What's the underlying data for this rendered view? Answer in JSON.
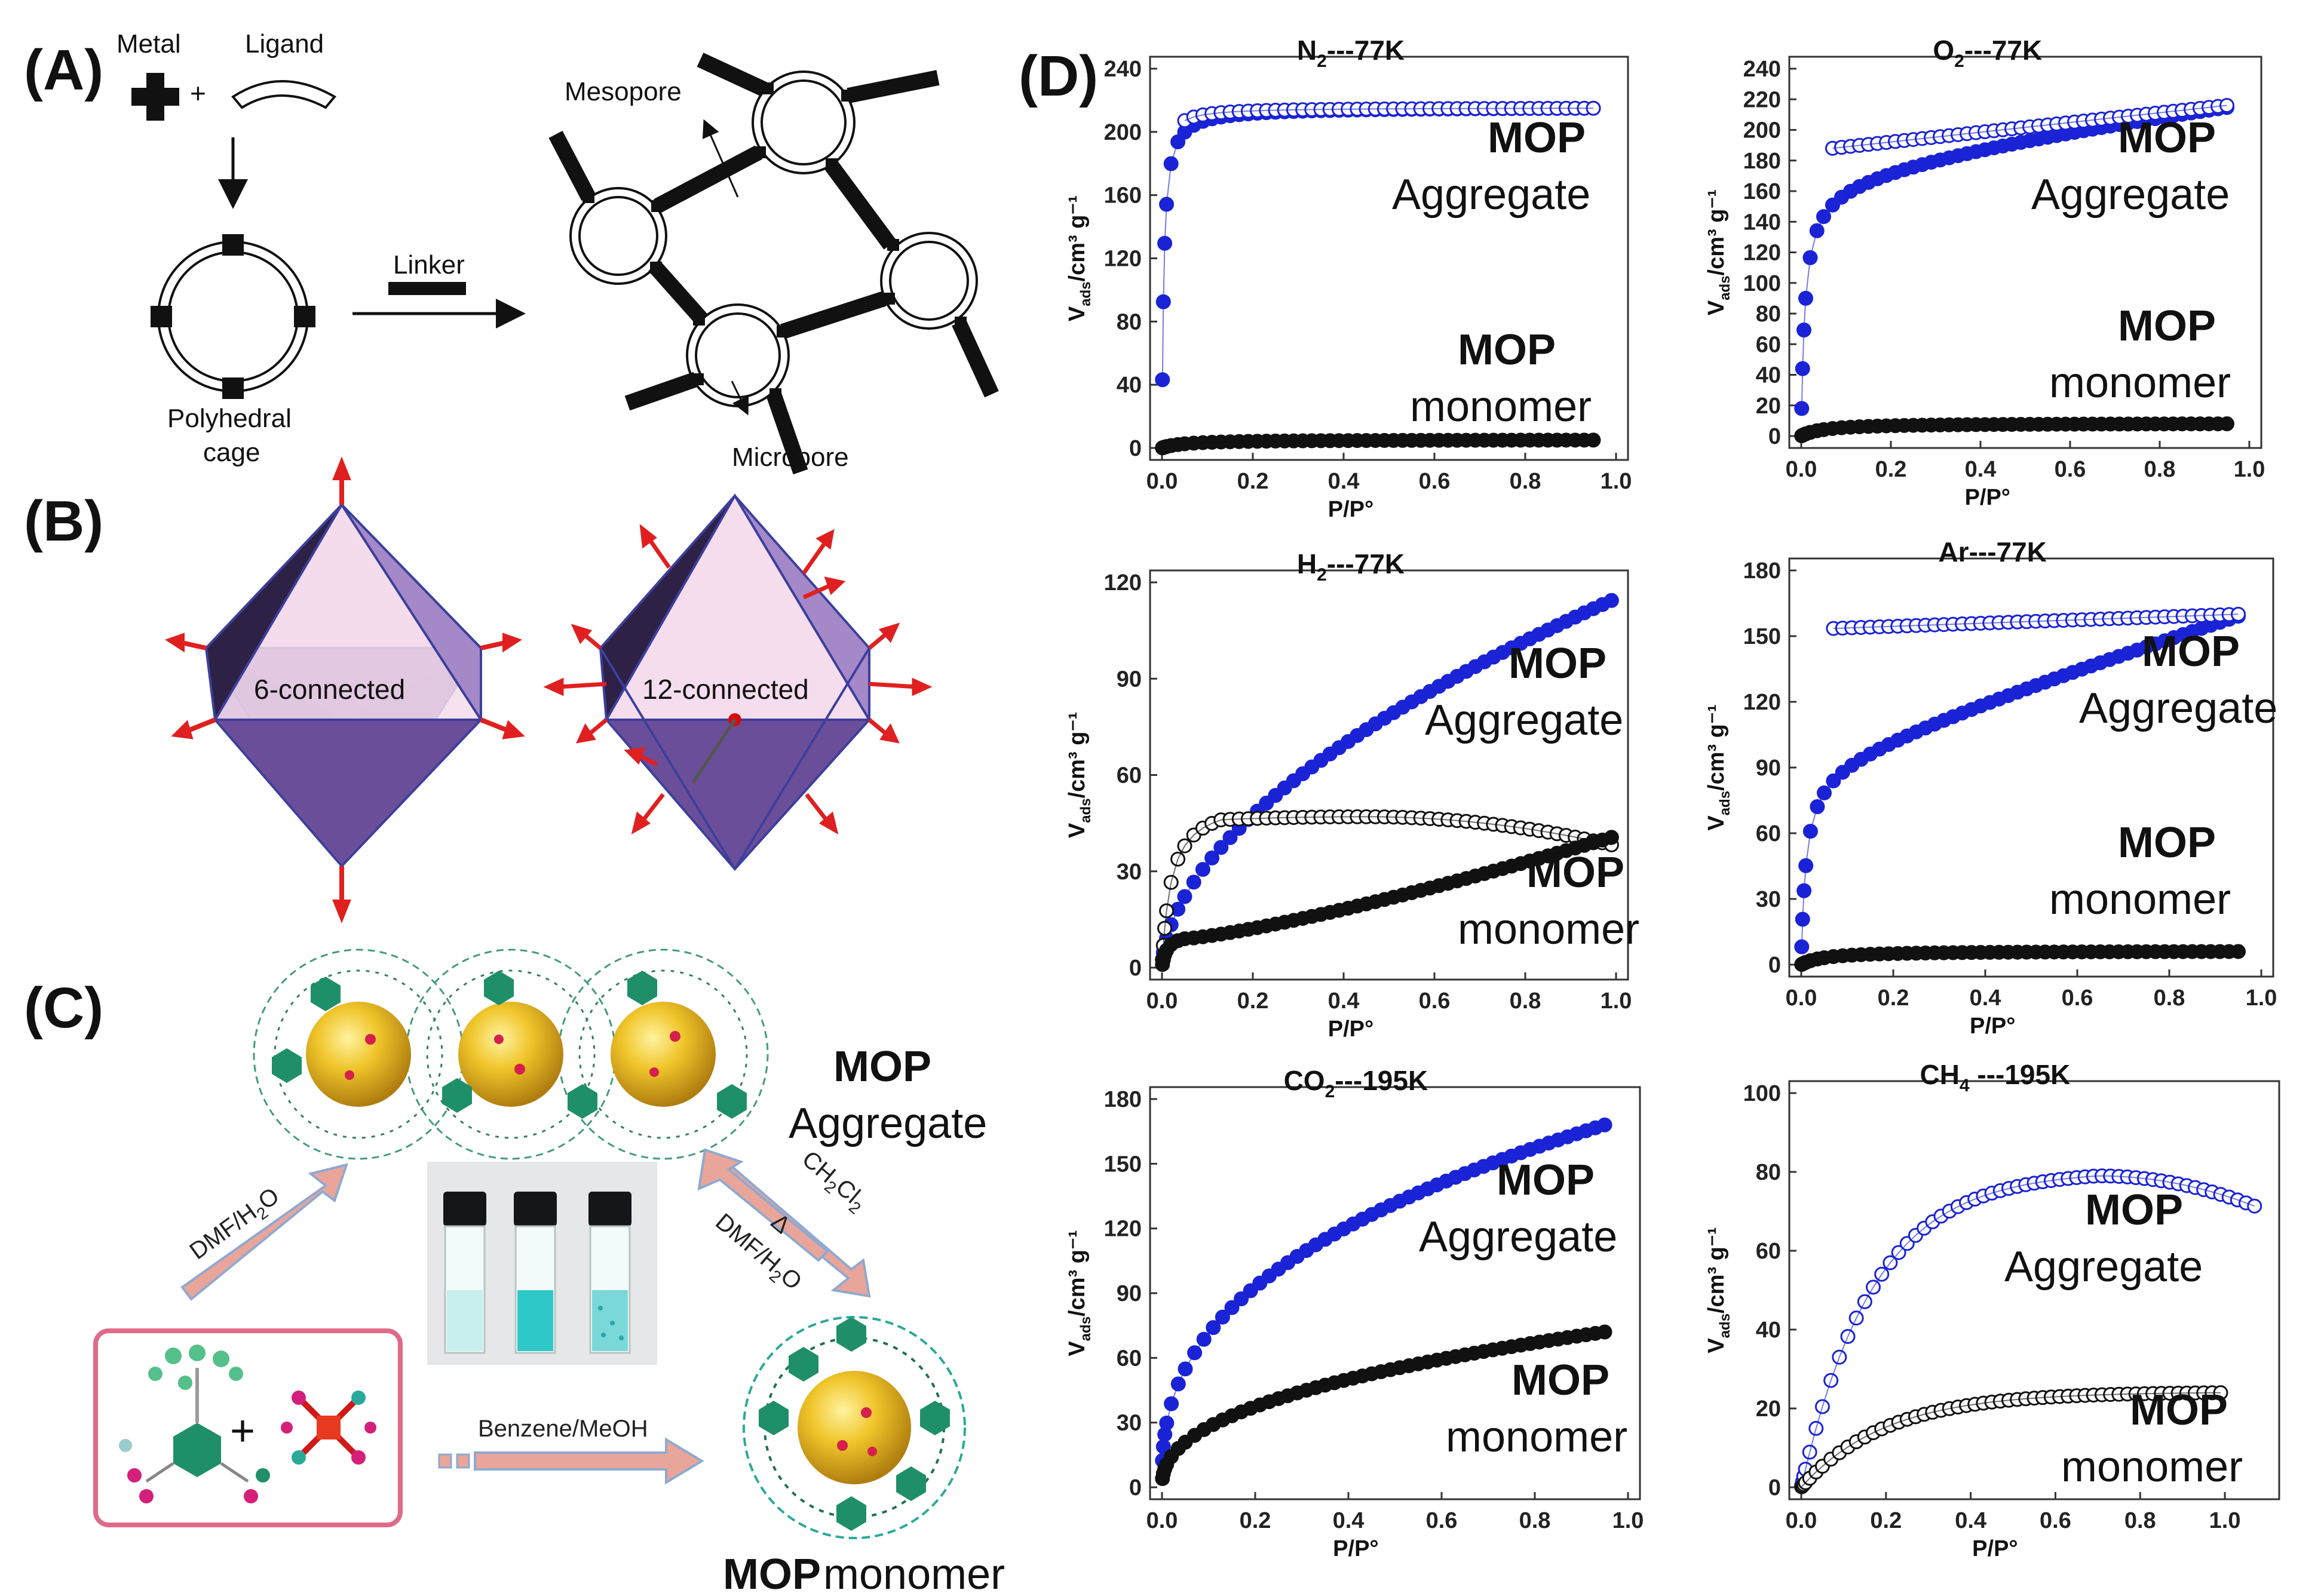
{
  "figure": {
    "panel_labels": [
      "(A)",
      "(B)",
      "(C)",
      "(D)"
    ],
    "panel_a": {
      "metal": "Metal",
      "ligand": "Ligand",
      "plus": "+",
      "linker": "Linker",
      "cage_line1": "Polyhedral",
      "cage_line2": "cage",
      "mesopore": "Mesopore",
      "micropore": "Micropore"
    },
    "panel_b": {
      "left_label": "6-connected",
      "right_label": "12-connected"
    },
    "panel_c": {
      "aggregate_bold": "MOP",
      "aggregate_text": "Aggregate",
      "monomer_bold": "MOP",
      "monomer_text": "monomer",
      "plus": "+",
      "arrow_dmf": "DMF/H",
      "arrow_dmf_sub": "2",
      "arrow_dmf_end": "O",
      "arrow_ch2cl2": "CH",
      "arrow_ch2cl2_sub1": "2",
      "arrow_ch2cl2_mid": "Cl",
      "arrow_ch2cl2_sub2": "2",
      "arrow_delta": "Δ",
      "arrow_dmf2": "DMF/H",
      "arrow_dmf2_sub": "2",
      "arrow_dmf2_end": "O",
      "arrow_benzene": "Benzene/MeOH"
    },
    "colors": {
      "aggregate": "#1a23d6",
      "monomer": "#111111",
      "pink_arrow": "#e9a59a",
      "sphere": "#e8b41b",
      "octa_light": "#f2d8ea",
      "octa_dark": "#6e4f9b",
      "frame": "#e06a8a"
    }
  },
  "chart_data": [
    {
      "type": "scatter",
      "title": "N",
      "title_sub": "2",
      "title_rest": "---77K",
      "xlim": [
        0,
        1.0
      ],
      "ylim": [
        0,
        240
      ],
      "xticks": [
        "0.0",
        "0.2",
        "0.4",
        "0.6",
        "0.8",
        "1.0"
      ],
      "yticks": [
        "0",
        "40",
        "80",
        "120",
        "160",
        "200",
        "240"
      ],
      "xlabel": "P/P°",
      "ylabel": "V",
      "ylabel_sub": "ads",
      "ylabel_rest": "/cm³ g⁻¹",
      "labels": {
        "agg1": "MOP",
        "agg2": "Aggregate",
        "mon1": "MOP",
        "mon2": "monomer"
      },
      "series": [
        {
          "name": "MOP Aggregate adsorption",
          "ymax": 215,
          "k": 0.004,
          "curve": "langmuir",
          "filled": true,
          "x_end": 0.95
        },
        {
          "name": "MOP Aggregate desorption",
          "ymax": 215,
          "k": 0.002,
          "curve": "langmuir",
          "filled": false,
          "x_start": 0.05,
          "x_end": 0.95
        },
        {
          "name": "MOP monomer",
          "ymax": 5,
          "k": 0.05,
          "curve": "flat",
          "filled": true,
          "x_end": 0.95
        }
      ]
    },
    {
      "type": "scatter",
      "title": "O",
      "title_sub": "2",
      "title_rest": "---77K",
      "xlim": [
        0,
        1.0
      ],
      "ylim": [
        0,
        240
      ],
      "xticks": [
        "0.0",
        "0.2",
        "0.4",
        "0.6",
        "0.8",
        "1.0"
      ],
      "yticks": [
        "0",
        "20",
        "40",
        "60",
        "80",
        "100",
        "120",
        "140",
        "160",
        "180",
        "200",
        "220",
        "240"
      ],
      "xlabel": "P/P°",
      "ylabel": "V",
      "ylabel_sub": "ads",
      "ylabel_rest": "/cm³ g⁻¹",
      "labels": {
        "agg1": "MOP",
        "agg2": "Aggregate",
        "mon1": "MOP",
        "mon2": "monomer"
      },
      "series": [
        {
          "name": "MOP Aggregate adsorption",
          "ymax": 216,
          "k": 0.01,
          "curve": "rise",
          "filled": true,
          "x_end": 0.95
        },
        {
          "name": "MOP Aggregate desorption",
          "ymax": 216,
          "k": 0.01,
          "curve": "rise_upper",
          "filled": false,
          "x_start": 0.07,
          "x_end": 0.95
        },
        {
          "name": "MOP monomer",
          "ymax": 8,
          "k": 0.05,
          "curve": "flat",
          "filled": true,
          "x_end": 0.95
        }
      ]
    },
    {
      "type": "scatter",
      "title": "H",
      "title_sub": "2",
      "title_rest": "---77K",
      "xlim": [
        0,
        1.0
      ],
      "ylim": [
        0,
        120
      ],
      "xticks": [
        "0.0",
        "0.2",
        "0.4",
        "0.6",
        "0.8",
        "1.0"
      ],
      "yticks": [
        "0",
        "30",
        "60",
        "90",
        "120"
      ],
      "xlabel": "P/P°",
      "ylabel": "V",
      "ylabel_sub": "ads",
      "ylabel_rest": "/cm³ g⁻¹",
      "labels": {
        "agg1": "MOP",
        "agg2": "Aggregate",
        "mon1": "MOP",
        "mon2": "monomer"
      },
      "series": [
        {
          "name": "MOP Aggregate",
          "ymax": 115,
          "k": 0.25,
          "curve": "h2agg",
          "filled": true,
          "x_end": 1.0
        },
        {
          "name": "MOP monomer desorption",
          "ymax": 47,
          "k": 0.1,
          "curve": "h2mon_open",
          "filled": false,
          "x_end": 1.0
        },
        {
          "name": "MOP monomer adsorption",
          "ymax": 41,
          "k": 0.1,
          "curve": "h2mon_fill",
          "filled": true,
          "x_end": 1.0
        }
      ]
    },
    {
      "type": "scatter",
      "title": "Ar",
      "title_sub": "",
      "title_rest": "---77K",
      "xlim": [
        0,
        1.0
      ],
      "ylim": [
        0,
        180
      ],
      "xticks": [
        "0.0",
        "0.2",
        "0.4",
        "0.6",
        "0.8",
        "1.0"
      ],
      "yticks": [
        "0",
        "30",
        "60",
        "90",
        "120",
        "150",
        "180"
      ],
      "xlabel": "P/P°",
      "ylabel": "V",
      "ylabel_sub": "ads",
      "ylabel_rest": "/cm³ g⁻¹",
      "labels": {
        "agg1": "MOP",
        "agg2": "Aggregate",
        "mon1": "MOP",
        "mon2": "monomer"
      },
      "series": [
        {
          "name": "MOP Aggregate adsorption",
          "ymax": 160,
          "k": 0.02,
          "curve": "arfill",
          "filled": true,
          "x_end": 0.95
        },
        {
          "name": "MOP Aggregate desorption",
          "ymax": 160,
          "k": 0.02,
          "curve": "aropen",
          "filled": false,
          "x_start": 0.07,
          "x_end": 0.95
        },
        {
          "name": "MOP monomer",
          "ymax": 6,
          "k": 0.05,
          "curve": "flat",
          "filled": true,
          "x_end": 0.95
        }
      ]
    },
    {
      "type": "scatter",
      "title": "CO",
      "title_sub": "2",
      "title_rest": "---195K",
      "xlim": [
        0,
        1.0
      ],
      "ylim": [
        0,
        180
      ],
      "xticks": [
        "0.0",
        "0.2",
        "0.4",
        "0.6",
        "0.8",
        "1.0"
      ],
      "yticks": [
        "0",
        "30",
        "60",
        "90",
        "120",
        "150",
        "180"
      ],
      "xlabel": "P/P°",
      "ylabel": "V",
      "ylabel_sub": "ads",
      "ylabel_rest": "/cm³ g⁻¹",
      "labels": {
        "agg1": "MOP",
        "agg2": "Aggregate",
        "mon1": "MOP",
        "mon2": "monomer"
      },
      "series": [
        {
          "name": "MOP Aggregate",
          "ymax": 168,
          "k": 0.12,
          "curve": "co2agg",
          "filled": true,
          "x_end": 0.95
        },
        {
          "name": "MOP monomer",
          "ymax": 72,
          "k": 0.1,
          "curve": "co2mon",
          "filled": true,
          "x_end": 0.95
        }
      ]
    },
    {
      "type": "scatter",
      "title": "CH",
      "title_sub": "4",
      "title_rest": " ---195K",
      "xlim": [
        0,
        1.1
      ],
      "ylim": [
        0,
        100
      ],
      "xticks": [
        "0.0",
        "0.2",
        "0.4",
        "0.6",
        "0.8",
        "1.0"
      ],
      "yticks": [
        "0",
        "20",
        "40",
        "60",
        "80",
        "100"
      ],
      "xlabel": "P/P°",
      "ylabel": "V",
      "ylabel_sub": "ads",
      "ylabel_rest": "/cm³ g⁻¹",
      "labels": {
        "agg1": "MOP",
        "agg2": "Aggregate",
        "mon1": "MOP",
        "mon2": "monomer"
      },
      "series": [
        {
          "name": "MOP Aggregate",
          "ymax": 79,
          "k": 0.15,
          "curve": "ch4agg",
          "filled": false,
          "x_end": 1.08
        },
        {
          "name": "MOP monomer",
          "ymax": 24,
          "k": 0.12,
          "curve": "ch4mon",
          "filled": false,
          "x_end": 1.0
        }
      ]
    }
  ]
}
